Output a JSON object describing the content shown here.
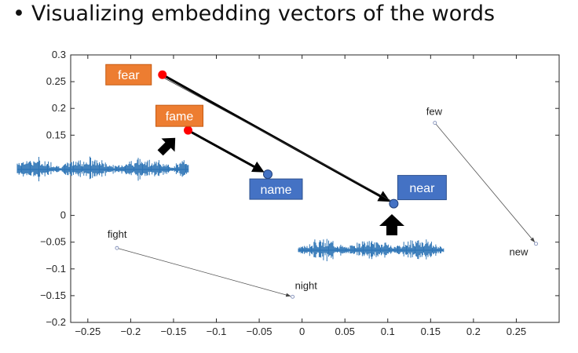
{
  "slide": {
    "bullet": "•",
    "heading": "Visualizing embedding vectors of the words"
  },
  "colors": {
    "orange_box": "#ED7D31",
    "blue_box": "#4472C4",
    "red_point": "#FF0000",
    "blue_point": "#4472C4",
    "waveform": "#2E75B6",
    "gray_arrow": "#555555",
    "thick_arrow": "#000000"
  },
  "chart_data": {
    "type": "scatter",
    "title": "",
    "xlabel": "",
    "ylabel": "",
    "xlim": [
      -0.27,
      0.3
    ],
    "ylim": [
      -0.2,
      0.3
    ],
    "xticks": [
      -0.25,
      -0.2,
      -0.15,
      -0.1,
      -0.05,
      0,
      0.05,
      0.1,
      0.15,
      0.2,
      0.25
    ],
    "xtick_labels": [
      "−0.25",
      "−0.2",
      "−0.15",
      "−0.1",
      "−0.05",
      "0",
      "0.05",
      "0.1",
      "0.15",
      "0.2",
      "0.25"
    ],
    "yticks": [
      -0.2,
      -0.15,
      -0.1,
      -0.05,
      0,
      0.15,
      0.2,
      0.25,
      0.3
    ],
    "ytick_labels": [
      "−0.2",
      "−0.15",
      "−0.1",
      "−0.05",
      "0",
      "0.15",
      "0.2",
      "0.25",
      "0.3"
    ],
    "grid": false,
    "points": [
      {
        "word": "fear",
        "x": -0.163,
        "y": 0.263,
        "label_style": "orange-box"
      },
      {
        "word": "fame",
        "x": -0.133,
        "y": 0.159,
        "label_style": "orange-box"
      },
      {
        "word": "name",
        "x": -0.04,
        "y": 0.077,
        "label_style": "blue-box"
      },
      {
        "word": "near",
        "x": 0.107,
        "y": 0.022,
        "label_style": "blue-box"
      },
      {
        "word": "few",
        "x": 0.155,
        "y": 0.173,
        "label_style": "plain"
      },
      {
        "word": "new",
        "x": 0.273,
        "y": -0.053,
        "label_style": "plain"
      },
      {
        "word": "fight",
        "x": -0.216,
        "y": -0.061,
        "label_style": "plain"
      },
      {
        "word": "night",
        "x": -0.011,
        "y": -0.152,
        "label_style": "plain"
      }
    ],
    "arrows": [
      {
        "from": "fear",
        "to": "near",
        "style": "bold"
      },
      {
        "from": "fame",
        "to": "name",
        "style": "bold"
      },
      {
        "from": "few",
        "to": "new",
        "style": "thin"
      },
      {
        "from": "fight",
        "to": "night",
        "style": "thin"
      }
    ]
  }
}
